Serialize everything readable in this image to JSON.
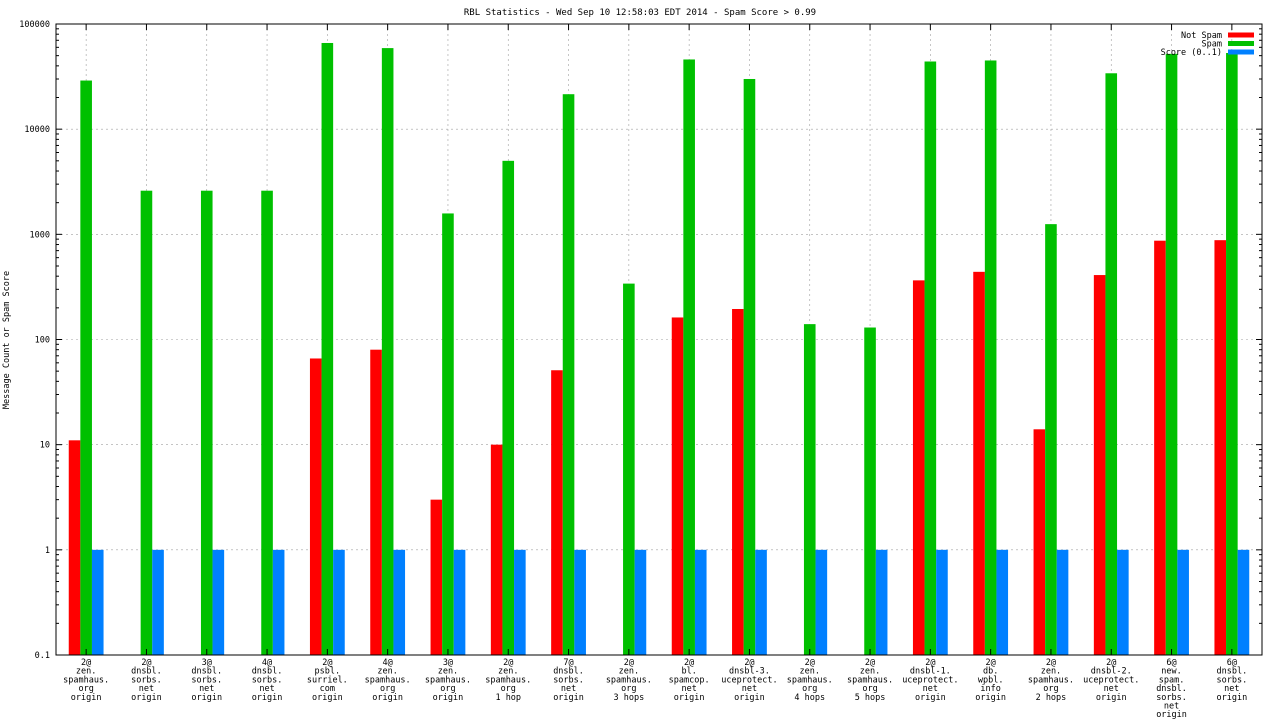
{
  "chart_data": {
    "type": "bar",
    "title": "RBL Statistics - Wed Sep 10 12:58:03 EDT 2014 - Spam Score > 0.99",
    "xlabel": "",
    "ylabel": "Message Count or Spam Score",
    "yscale": "log",
    "ylim": [
      0.1,
      100000
    ],
    "yticks": [
      "0.1",
      "1",
      "10",
      "100",
      "1000",
      "10000",
      "100000"
    ],
    "grid": true,
    "legend_position": "top-right",
    "categories": [
      [
        "2@",
        "zen.",
        "spamhaus.",
        "org",
        "origin"
      ],
      [
        "2@",
        "dnsbl.",
        "sorbs.",
        "net",
        "origin"
      ],
      [
        "3@",
        "dnsbl.",
        "sorbs.",
        "net",
        "origin"
      ],
      [
        "4@",
        "dnsbl.",
        "sorbs.",
        "net",
        "origin"
      ],
      [
        "2@",
        "psbl.",
        "surriel.",
        "com",
        "origin"
      ],
      [
        "4@",
        "zen.",
        "spamhaus.",
        "org",
        "origin"
      ],
      [
        "3@",
        "zen.",
        "spamhaus.",
        "org",
        "origin"
      ],
      [
        "2@",
        "zen.",
        "spamhaus.",
        "org",
        "1 hop"
      ],
      [
        "7@",
        "dnsbl.",
        "sorbs.",
        "net",
        "origin"
      ],
      [
        "2@",
        "zen.",
        "spamhaus.",
        "org",
        "3 hops"
      ],
      [
        "2@",
        "bl.",
        "spamcop.",
        "net",
        "origin"
      ],
      [
        "2@",
        "dnsbl-3.",
        "uceprotect.",
        "net",
        "origin"
      ],
      [
        "2@",
        "zen.",
        "spamhaus.",
        "org",
        "4 hops"
      ],
      [
        "2@",
        "zen.",
        "spamhaus.",
        "org",
        "5 hops"
      ],
      [
        "2@",
        "dnsbl-1.",
        "uceprotect.",
        "net",
        "origin"
      ],
      [
        "2@",
        "db.",
        "wpbl.",
        "info",
        "origin"
      ],
      [
        "2@",
        "zen.",
        "spamhaus.",
        "org",
        "2 hops"
      ],
      [
        "2@",
        "dnsbl-2.",
        "uceprotect.",
        "net",
        "origin"
      ],
      [
        "6@",
        "new.",
        "spam.",
        "dnsbl.",
        "sorbs.",
        "net",
        "origin"
      ],
      [
        "6@",
        "dnsbl.",
        "sorbs.",
        "net",
        "origin"
      ]
    ],
    "series": [
      {
        "name": "Not Spam",
        "color": "#ff0000",
        "values": [
          11,
          null,
          null,
          null,
          66,
          80,
          3,
          10,
          51,
          null,
          162,
          195,
          null,
          null,
          365,
          440,
          14,
          410,
          870,
          880
        ]
      },
      {
        "name": "Spam",
        "color": "#00c000",
        "values": [
          29000,
          2600,
          2600,
          2600,
          66000,
          59000,
          1580,
          5000,
          21500,
          340,
          46000,
          30000,
          140,
          130,
          44000,
          45000,
          1250,
          34000,
          52000,
          53000
        ]
      },
      {
        "name": "Score (0..1)",
        "color": "#0080ff",
        "values": [
          1,
          1,
          1,
          1,
          1,
          1,
          1,
          1,
          1,
          1,
          1,
          1,
          1,
          1,
          1,
          1,
          1,
          1,
          1,
          1
        ]
      }
    ]
  }
}
